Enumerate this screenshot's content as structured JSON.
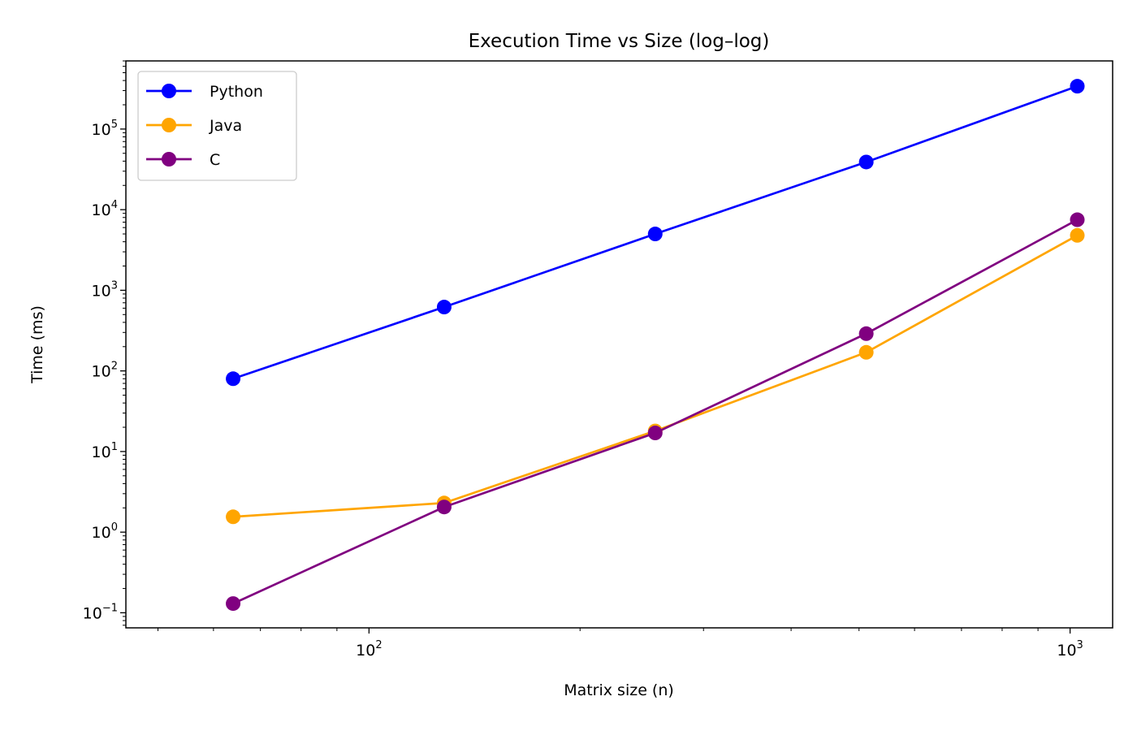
{
  "chart_data": {
    "type": "line",
    "title": "Execution Time vs Size (log–log)",
    "xlabel": "Matrix size (n)",
    "ylabel": "Time (ms)",
    "xscale": "log",
    "yscale": "log",
    "xlim": [
      45,
      1150
    ],
    "ylim": [
      0.065,
      700000
    ],
    "x_ticks": [
      {
        "value": 100,
        "base": "10",
        "exp": "2"
      },
      {
        "value": 1000,
        "base": "10",
        "exp": "3"
      }
    ],
    "y_ticks": [
      {
        "value": 0.1,
        "base": "10",
        "exp": "−1"
      },
      {
        "value": 1,
        "base": "10",
        "exp": "0"
      },
      {
        "value": 10,
        "base": "10",
        "exp": "1"
      },
      {
        "value": 100,
        "base": "10",
        "exp": "2"
      },
      {
        "value": 1000,
        "base": "10",
        "exp": "3"
      },
      {
        "value": 10000,
        "base": "10",
        "exp": "4"
      },
      {
        "value": 100000,
        "base": "10",
        "exp": "5"
      }
    ],
    "x": [
      64,
      128,
      256,
      512,
      1024
    ],
    "series": [
      {
        "name": "Python",
        "color": "#0000ff",
        "values": [
          80,
          620,
          5000,
          39000,
          340000
        ]
      },
      {
        "name": "Java",
        "color": "#ffa500",
        "values": [
          1.55,
          2.3,
          18,
          170,
          4800
        ]
      },
      {
        "name": "C",
        "color": "#800080",
        "values": [
          0.13,
          2.05,
          17,
          290,
          7500
        ]
      }
    ],
    "legend_position": "top-left",
    "grid": false
  }
}
